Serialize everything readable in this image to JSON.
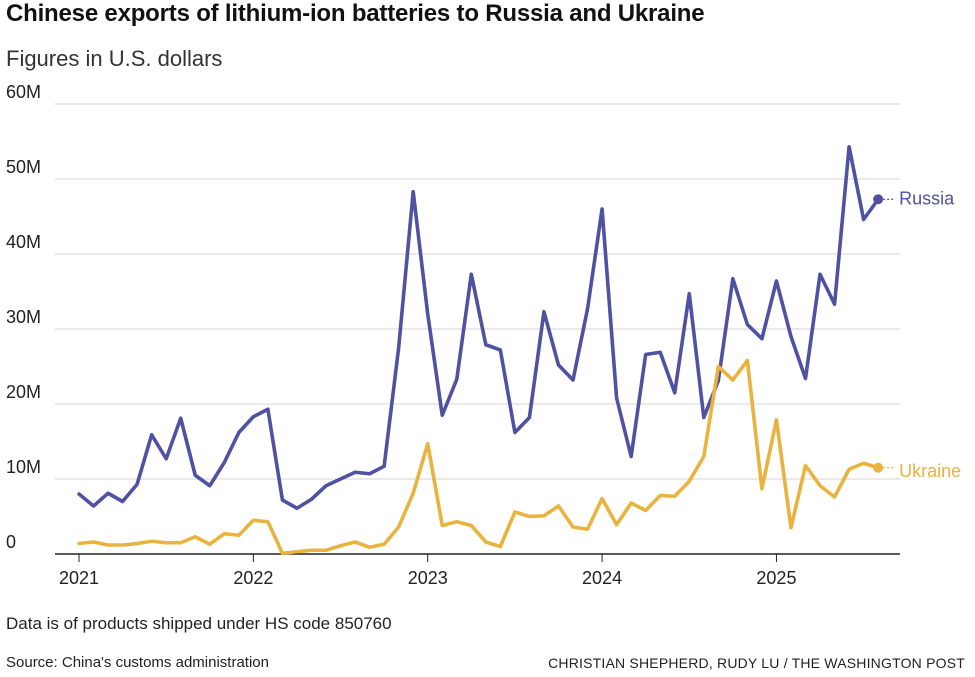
{
  "header": {
    "title": "Chinese exports of lithium-ion batteries to Russia and Ukraine",
    "subtitle": "Figures in U.S. dollars"
  },
  "footer": {
    "note": "Data is of products shipped under HS code 850760",
    "source": "Source: China's customs administration",
    "credit": "CHRISTIAN SHEPHERD, RUDY LU / THE WASHINGTON POST"
  },
  "chart_data": {
    "type": "line",
    "title": "Chinese exports of lithium-ion batteries to Russia and Ukraine",
    "subtitle": "Figures in U.S. dollars",
    "xlabel": "",
    "ylabel": "",
    "x_start": "2021-01",
    "x_end": "2025-08",
    "x_ticks": [
      {
        "label": "2021",
        "index": 0
      },
      {
        "label": "2022",
        "index": 12
      },
      {
        "label": "2023",
        "index": 24
      },
      {
        "label": "2024",
        "index": 36
      },
      {
        "label": "2025",
        "index": 48
      }
    ],
    "xlim_index": [
      0,
      56
    ],
    "ylim": [
      0,
      60
    ],
    "y_unit": "M USD",
    "y_ticks": [
      {
        "value": 0,
        "label": "0"
      },
      {
        "value": 10,
        "label": "10M"
      },
      {
        "value": 20,
        "label": "20M"
      },
      {
        "value": 30,
        "label": "30M"
      },
      {
        "value": 40,
        "label": "40M"
      },
      {
        "value": 50,
        "label": "50M"
      },
      {
        "value": 60,
        "label": "60M"
      }
    ],
    "grid": true,
    "series": [
      {
        "name": "Russia",
        "color": "#4f51a1",
        "values": [
          8.0,
          6.4,
          8.1,
          7.0,
          9.3,
          15.9,
          12.7,
          18.1,
          10.5,
          9.1,
          12.2,
          16.2,
          18.3,
          19.3,
          7.2,
          6.1,
          7.3,
          9.1,
          10.0,
          10.9,
          10.7,
          11.7,
          27.5,
          48.3,
          32.0,
          18.5,
          23.3,
          37.3,
          27.9,
          27.2,
          16.2,
          18.2,
          32.3,
          25.2,
          23.2,
          32.7,
          46.0,
          20.8,
          13.0,
          26.6,
          26.9,
          21.5,
          34.7,
          18.2,
          23.1,
          36.7,
          30.6,
          28.7,
          36.4,
          29.0,
          23.4,
          37.3,
          33.3,
          54.3,
          44.6,
          47.3
        ]
      },
      {
        "name": "Ukraine",
        "color": "#e9b33f",
        "values": [
          1.4,
          1.6,
          1.2,
          1.2,
          1.4,
          1.7,
          1.5,
          1.5,
          2.3,
          1.3,
          2.7,
          2.5,
          4.5,
          4.3,
          0.1,
          0.3,
          0.5,
          0.5,
          1.1,
          1.6,
          0.9,
          1.3,
          3.6,
          8.1,
          14.7,
          3.8,
          4.3,
          3.8,
          1.6,
          1.0,
          5.6,
          5.0,
          5.1,
          6.4,
          3.6,
          3.3,
          7.4,
          3.9,
          6.8,
          5.8,
          7.8,
          7.7,
          9.7,
          13.0,
          25.0,
          23.2,
          25.8,
          8.7,
          17.9,
          3.5,
          11.8,
          9.1,
          7.6,
          11.3,
          12.1,
          11.5
        ]
      }
    ]
  }
}
